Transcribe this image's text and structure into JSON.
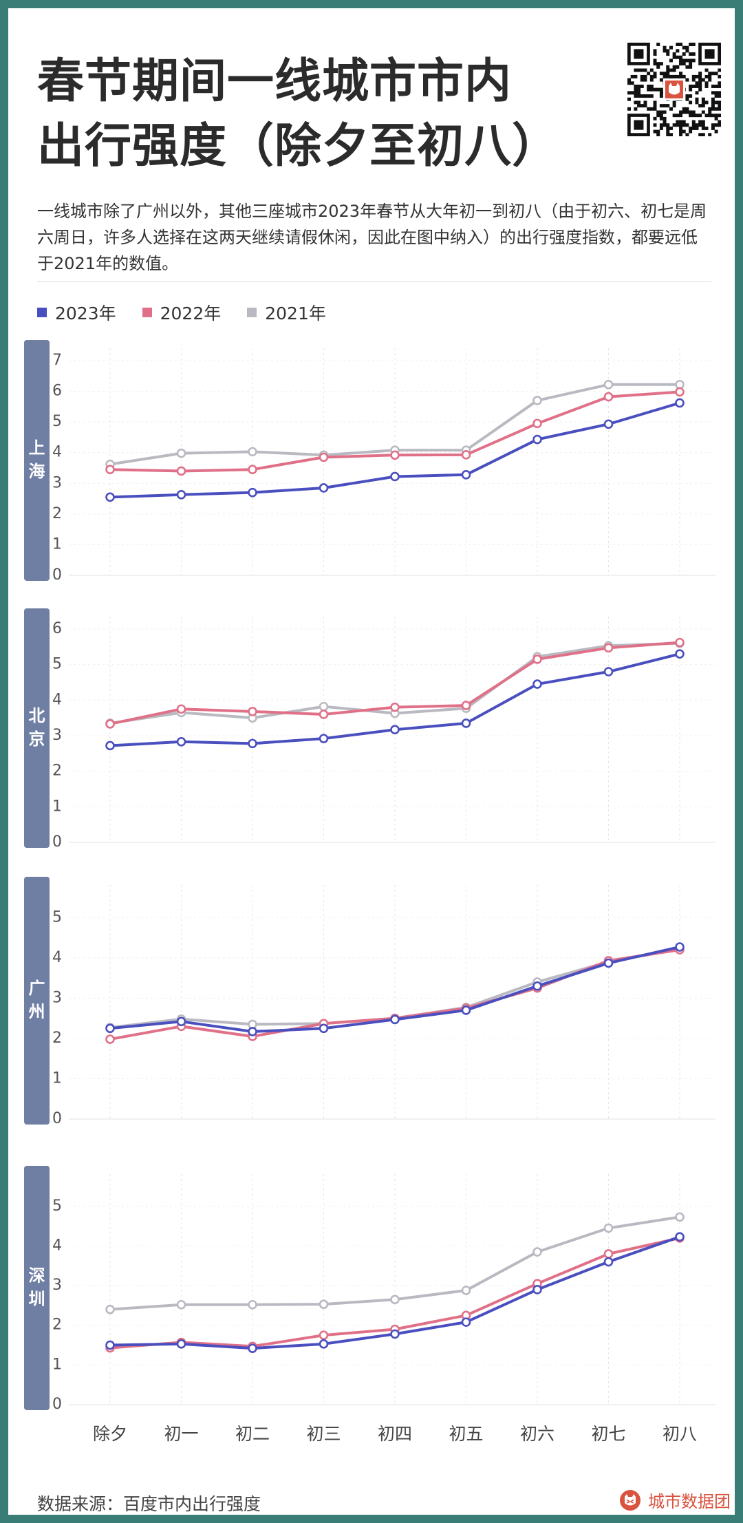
{
  "header": {
    "title_line1": "春节期间一线城市市内",
    "title_line2": "出行强度（除夕至初八）"
  },
  "qr_code_icon": "qr-code-icon",
  "description": "一线城市除了广州以外，其他三座城市2023年春节从大年初一到初八（由于初六、初七是周六周日，许多人选择在这两天继续请假休闲，因此在图中纳入）的出行强度指数，都要远低于2021年的数值。",
  "legend": [
    {
      "label": "2023年",
      "color": "#4a4fbf"
    },
    {
      "label": "2022年",
      "color": "#e07088"
    },
    {
      "label": "2021年",
      "color": "#b9b9c2"
    }
  ],
  "colors": {
    "series_2023": "#4a4fbf",
    "series_2022": "#e07088",
    "series_2021": "#b9b9c2",
    "city_tab": "#6f7ea3",
    "background_frame": "#3a7d77",
    "brand": "#d9533f"
  },
  "chart_data": [
    {
      "type": "line",
      "title": "上海",
      "categories": [
        "除夕",
        "初一",
        "初二",
        "初三",
        "初四",
        "初五",
        "初六",
        "初七",
        "初八"
      ],
      "ylim": [
        0,
        7
      ],
      "yticks": [
        0,
        1,
        2,
        3,
        4,
        5,
        6,
        7
      ],
      "series": [
        {
          "name": "2023年",
          "values": [
            2.55,
            2.63,
            2.7,
            2.85,
            3.22,
            3.28,
            4.43,
            4.93,
            5.62
          ]
        },
        {
          "name": "2022年",
          "values": [
            3.45,
            3.4,
            3.45,
            3.85,
            3.92,
            3.93,
            4.95,
            5.82,
            5.98
          ]
        },
        {
          "name": "2021年",
          "values": [
            3.62,
            3.98,
            4.03,
            3.92,
            4.08,
            4.08,
            5.7,
            6.22,
            6.22
          ]
        }
      ]
    },
    {
      "type": "line",
      "title": "北京",
      "categories": [
        "除夕",
        "初一",
        "初二",
        "初三",
        "初四",
        "初五",
        "初六",
        "初七",
        "初八"
      ],
      "ylim": [
        0,
        6
      ],
      "yticks": [
        0,
        1,
        2,
        3,
        4,
        5,
        6
      ],
      "series": [
        {
          "name": "2023年",
          "values": [
            2.72,
            2.83,
            2.78,
            2.92,
            3.17,
            3.35,
            4.45,
            4.8,
            5.3
          ]
        },
        {
          "name": "2022年",
          "values": [
            3.33,
            3.75,
            3.68,
            3.6,
            3.8,
            3.85,
            5.15,
            5.47,
            5.62
          ]
        },
        {
          "name": "2021年",
          "values": [
            3.35,
            3.65,
            3.5,
            3.82,
            3.63,
            3.77,
            5.22,
            5.53,
            5.6
          ]
        }
      ]
    },
    {
      "type": "line",
      "title": "广州",
      "categories": [
        "除夕",
        "初一",
        "初二",
        "初三",
        "初四",
        "初五",
        "初六",
        "初七",
        "初八"
      ],
      "ylim": [
        0,
        5.5
      ],
      "yticks": [
        0,
        1,
        2,
        3,
        4,
        5
      ],
      "series": [
        {
          "name": "2023年",
          "values": [
            2.25,
            2.42,
            2.17,
            2.25,
            2.47,
            2.7,
            3.3,
            3.87,
            4.27
          ]
        },
        {
          "name": "2022年",
          "values": [
            1.98,
            2.3,
            2.05,
            2.37,
            2.5,
            2.75,
            3.25,
            3.93,
            4.2
          ]
        },
        {
          "name": "2021年",
          "values": [
            2.27,
            2.48,
            2.35,
            2.37,
            2.5,
            2.77,
            3.4,
            3.9,
            4.22
          ]
        }
      ]
    },
    {
      "type": "line",
      "title": "深圳",
      "categories": [
        "除夕",
        "初一",
        "初二",
        "初三",
        "初四",
        "初五",
        "初六",
        "初七",
        "初八"
      ],
      "ylim": [
        0,
        5.5
      ],
      "yticks": [
        0,
        1,
        2,
        3,
        4,
        5
      ],
      "series": [
        {
          "name": "2023年",
          "values": [
            1.5,
            1.53,
            1.42,
            1.53,
            1.78,
            2.08,
            2.9,
            3.6,
            4.23
          ]
        },
        {
          "name": "2022年",
          "values": [
            1.43,
            1.57,
            1.47,
            1.75,
            1.9,
            2.25,
            3.05,
            3.8,
            4.2
          ]
        },
        {
          "name": "2021年",
          "values": [
            2.4,
            2.52,
            2.52,
            2.53,
            2.65,
            2.88,
            3.85,
            4.45,
            4.73
          ]
        }
      ]
    }
  ],
  "footer": {
    "source": "数据来源：百度市内出行强度",
    "brand": "城市数据团",
    "brand_icon": "cat-logo-icon"
  }
}
